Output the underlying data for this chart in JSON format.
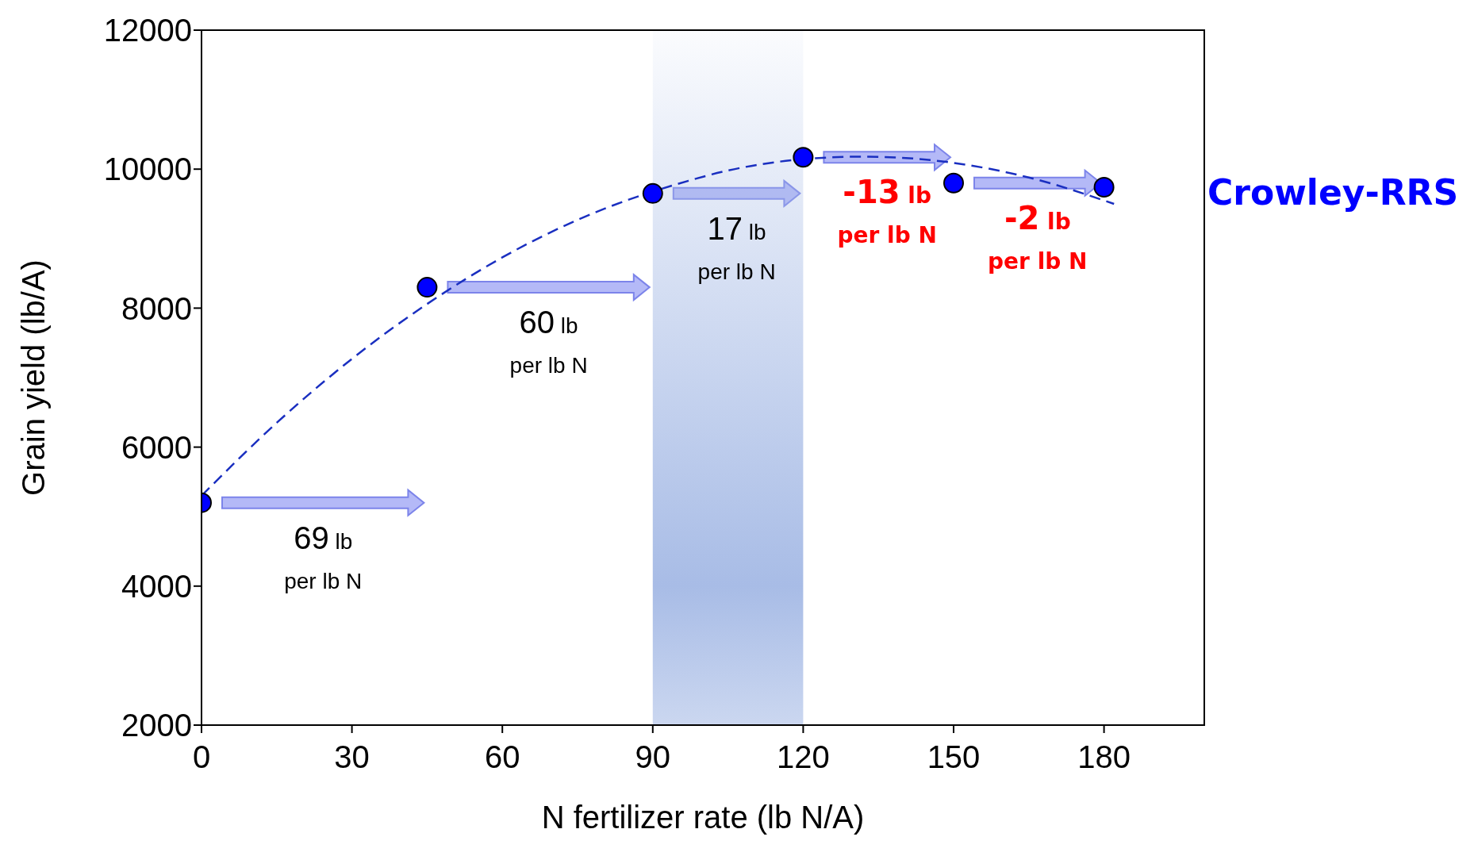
{
  "chart_data": {
    "type": "scatter",
    "xlabel": "N fertilizer rate (lb N/A)",
    "ylabel": "Grain yield (lb/A)",
    "xlim": [
      0,
      200
    ],
    "xticks": [
      0,
      30,
      60,
      90,
      120,
      150,
      180
    ],
    "ylim": [
      2000,
      12000
    ],
    "yticks": [
      2000,
      4000,
      6000,
      8000,
      10000,
      12000
    ],
    "grid": false,
    "legend": false,
    "marker": "circle",
    "series": [
      {
        "name": "Crowley-RRS",
        "color": "#0000ff",
        "x": [
          0,
          45,
          90,
          120,
          150,
          180
        ],
        "values": [
          5200,
          8300,
          9650,
          10170,
          9800,
          9740
        ]
      },
      {
        "type": "line",
        "color": "#1a2fc0",
        "line_style": "dashed",
        "marker": "none",
        "x": [
          0,
          15,
          30,
          45,
          60,
          75,
          97,
          105,
          118,
          132,
          150,
          165,
          182
        ],
        "values": [
          5300,
          6350,
          7270,
          8060,
          8730,
          9270,
          9830,
          9980,
          10130,
          10180,
          10090,
          9880,
          9500
        ]
      }
    ],
    "bands": [
      {
        "axis": "x",
        "from": 90,
        "to": 120,
        "color": "#a8bce6"
      }
    ],
    "annotations": [
      "69 lb\nper lb N",
      "60 lb\nper lb N",
      "17 lb\nper lb N",
      "-13 lb\nper lb N",
      "-2 lb\nper lb N"
    ]
  }
}
